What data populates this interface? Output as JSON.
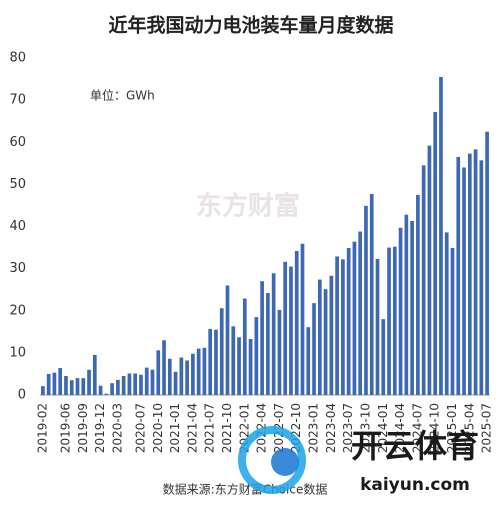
{
  "chart_data": {
    "type": "bar",
    "title": "近年我国动力电池装车量月度数据",
    "annotation": "单位：GWh",
    "source": "数据来源:东方财富Choice数据",
    "watermark": "东方财富",
    "categories": [
      "2019-02",
      null,
      null,
      null,
      "2019-06",
      null,
      null,
      "2019-09",
      null,
      null,
      "2019-12",
      null,
      null,
      "2020-03",
      null,
      null,
      null,
      "2020-07",
      null,
      null,
      "2020-10",
      null,
      null,
      "2021-01",
      null,
      null,
      "2021-04",
      null,
      null,
      "2021-07",
      null,
      null,
      "2021-10",
      null,
      null,
      "2022-01",
      null,
      null,
      "2022-04",
      null,
      null,
      "2022-07",
      null,
      null,
      "2022-10",
      null,
      null,
      "2023-01",
      null,
      null,
      "2023-04",
      null,
      null,
      "2023-07",
      null,
      null,
      "2023-10",
      null,
      null,
      "2024-01",
      null,
      null,
      "2024-04",
      null,
      null,
      "2024-07",
      null,
      null,
      "2024-10",
      null,
      null,
      "2025-01",
      null,
      null,
      "2025-04",
      null,
      null,
      "2025-07"
    ],
    "values": [
      2.1,
      5.0,
      5.3,
      6.4,
      4.5,
      3.5,
      4.0,
      4.0,
      6.0,
      9.5,
      2.2,
      0.3,
      2.8,
      3.6,
      4.5,
      5.1,
      5.1,
      4.8,
      6.5,
      6.0,
      10.6,
      13.0,
      8.6,
      5.5,
      8.9,
      8.2,
      9.8,
      11.0,
      11.2,
      15.7,
      15.5,
      20.6,
      26.0,
      16.3,
      13.7,
      22.9,
      13.3,
      18.5,
      27.0,
      24.2,
      28.9,
      20.2,
      31.6,
      30.5,
      34.2,
      35.9,
      16.1,
      21.8,
      27.4,
      25.1,
      28.3,
      32.9,
      32.2,
      34.9,
      36.4,
      38.8,
      44.9,
      47.7,
      32.3,
      18.0,
      35.0,
      35.2,
      39.7,
      42.8,
      41.3,
      47.5,
      54.5,
      59.2,
      67.2,
      75.5,
      38.6,
      34.9,
      56.5,
      54.0,
      57.3,
      58.3,
      55.7,
      62.5
    ],
    "color": "#3d68b3",
    "ylim": [
      0,
      80
    ],
    "yticks": [
      0,
      10,
      20,
      30,
      40,
      50,
      60,
      70,
      80
    ],
    "grid": false
  },
  "overlay": {
    "brand": "开云体育",
    "url": "kaiyun.com"
  }
}
